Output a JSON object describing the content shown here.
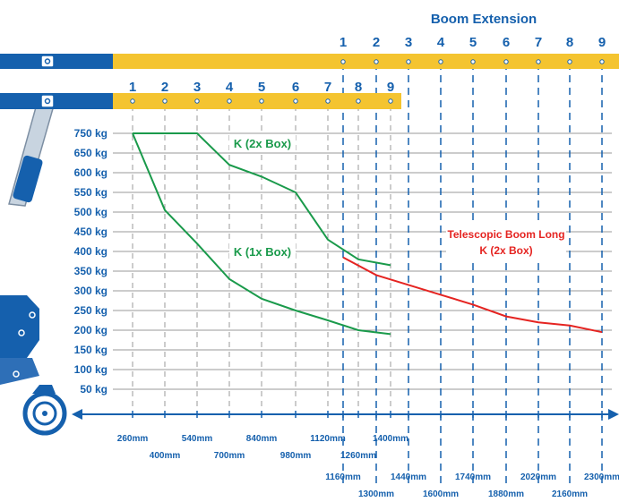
{
  "title": "Boom Extension",
  "colors": {
    "blue": "#1560ad",
    "yellow": "#f4c430",
    "green": "#1a9a4b",
    "red": "#e52421",
    "grid": "#9a9a9a",
    "steel": "#8fa3b8"
  },
  "icons": [
    "boom-bracket-icon",
    "crane-arm-icon",
    "wheel-icon"
  ],
  "chart_data": {
    "type": "line",
    "ylim": [
      0,
      750
    ],
    "y_ticks": [
      "750 kg",
      "650 kg",
      "600 kg",
      "550 kg",
      "500 kg",
      "450 kg",
      "400 kg",
      "350 kg",
      "300 kg",
      "250 kg",
      "200 kg",
      "150 kg",
      "100 kg",
      "50 kg"
    ],
    "upper_bar_positions": [
      "1",
      "2",
      "3",
      "4",
      "5",
      "6",
      "7",
      "8",
      "9"
    ],
    "lower_bar_positions": [
      "1",
      "2",
      "3",
      "4",
      "5",
      "6",
      "7",
      "8",
      "9"
    ],
    "x_ticks": [
      {
        "label": "260mm",
        "row": 1
      },
      {
        "label": "400mm",
        "row": 2
      },
      {
        "label": "540mm",
        "row": 1
      },
      {
        "label": "700mm",
        "row": 2
      },
      {
        "label": "840mm",
        "row": 1
      },
      {
        "label": "980mm",
        "row": 2
      },
      {
        "label": "1120mm",
        "row": 1
      },
      {
        "label": "1260mm",
        "row": 2
      },
      {
        "label": "1400mm",
        "row": 1
      },
      {
        "label": "1160mm",
        "row": 3
      },
      {
        "label": "1300mm",
        "row": 4
      },
      {
        "label": "1440mm",
        "row": 3
      },
      {
        "label": "1600mm",
        "row": 4
      },
      {
        "label": "1740mm",
        "row": 3
      },
      {
        "label": "1880mm",
        "row": 4
      },
      {
        "label": "2020mm",
        "row": 3
      },
      {
        "label": "2160mm",
        "row": 4
      },
      {
        "label": "2300mm",
        "row": 3
      }
    ],
    "series": [
      {
        "name": "K (2x Box)",
        "color": "green",
        "points": [
          {
            "pos": 1,
            "y": 750
          },
          {
            "pos": 2,
            "y": 750
          },
          {
            "pos": 3,
            "y": 750
          },
          {
            "pos": 4,
            "y": 620
          },
          {
            "pos": 5,
            "y": 590
          },
          {
            "pos": 6,
            "y": 550
          },
          {
            "pos": 7,
            "y": 430
          },
          {
            "pos": 8,
            "y": 380
          },
          {
            "pos": 9,
            "y": 365
          }
        ]
      },
      {
        "name": "K (1x Box)",
        "color": "green",
        "points": [
          {
            "pos": 1,
            "y": 750
          },
          {
            "pos": 2,
            "y": 505
          },
          {
            "pos": 3,
            "y": 420
          },
          {
            "pos": 4,
            "y": 330
          },
          {
            "pos": 5,
            "y": 280
          },
          {
            "pos": 6,
            "y": 250
          },
          {
            "pos": 7,
            "y": 225
          },
          {
            "pos": 8,
            "y": 200
          },
          {
            "pos": 9,
            "y": 190
          }
        ]
      },
      {
        "name": "Telescopic Boom Long K (2x Box)",
        "name_lines": [
          "Telescopic Boom Long",
          "K (2x Box)"
        ],
        "color": "red",
        "points": [
          {
            "pos": 1,
            "y": 385
          },
          {
            "pos": 2,
            "y": 340
          },
          {
            "pos": 3,
            "y": 315
          },
          {
            "pos": 4,
            "y": 290
          },
          {
            "pos": 5,
            "y": 265
          },
          {
            "pos": 6,
            "y": 235
          },
          {
            "pos": 7,
            "y": 220
          },
          {
            "pos": 8,
            "y": 212
          },
          {
            "pos": 9,
            "y": 195
          }
        ]
      }
    ]
  }
}
